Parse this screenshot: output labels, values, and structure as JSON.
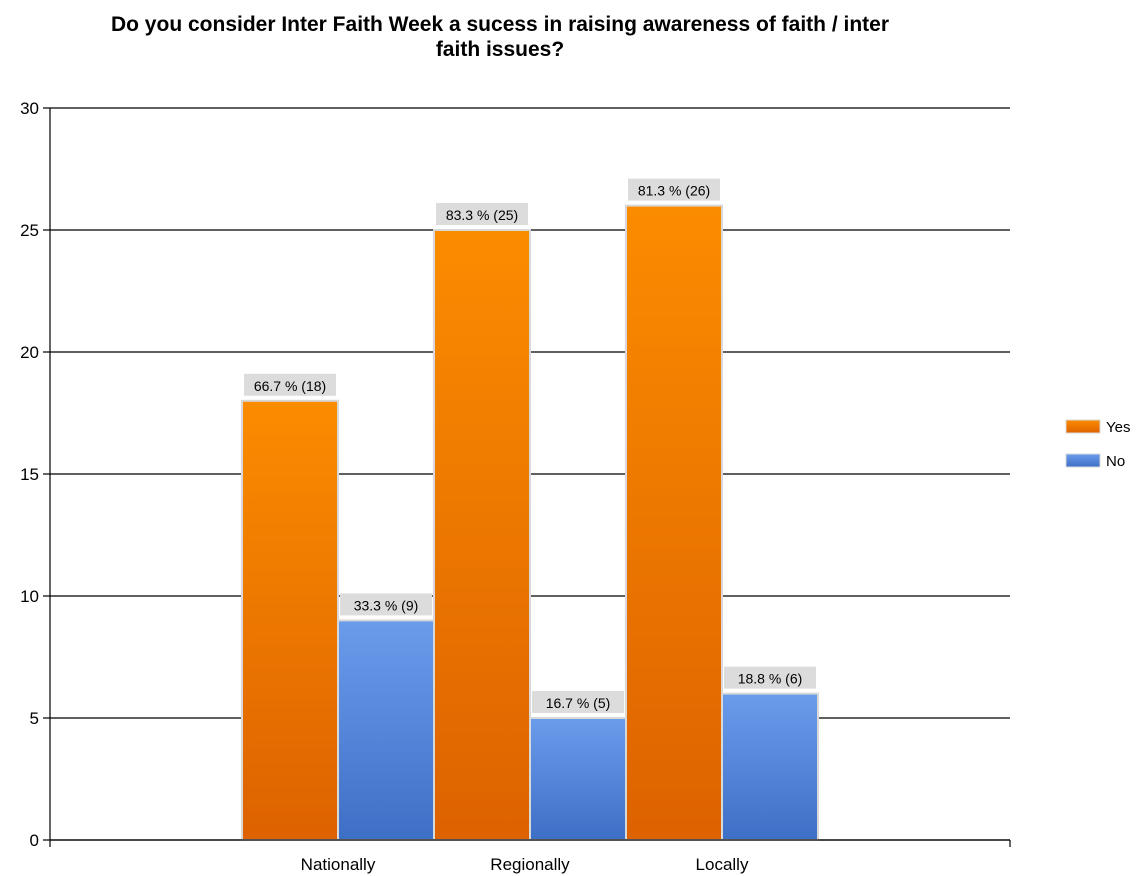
{
  "chart_data": {
    "type": "bar",
    "title_lines": [
      "Do you consider Inter Faith Week a sucess in raising awareness of faith / inter",
      "faith issues?"
    ],
    "categories": [
      "Nationally",
      "Regionally",
      "Locally"
    ],
    "series": [
      {
        "name": "Yes",
        "values": [
          18,
          25,
          26
        ],
        "labels": [
          "66.7 % (18)",
          "83.3 % (25)",
          "81.3 % (26)"
        ],
        "color_top": "#fb8c00",
        "color_bottom": "#dd6200"
      },
      {
        "name": "No",
        "values": [
          9,
          5,
          6
        ],
        "labels": [
          "33.3 % (9)",
          "16.7 % (5)",
          "18.8 % (6)"
        ],
        "color_top": "#6a9cec",
        "color_bottom": "#3e6fc6"
      }
    ],
    "ylim": [
      0,
      30
    ],
    "yticks": [
      0,
      5,
      10,
      15,
      20,
      25,
      30
    ],
    "grid": true,
    "legend": "right"
  }
}
